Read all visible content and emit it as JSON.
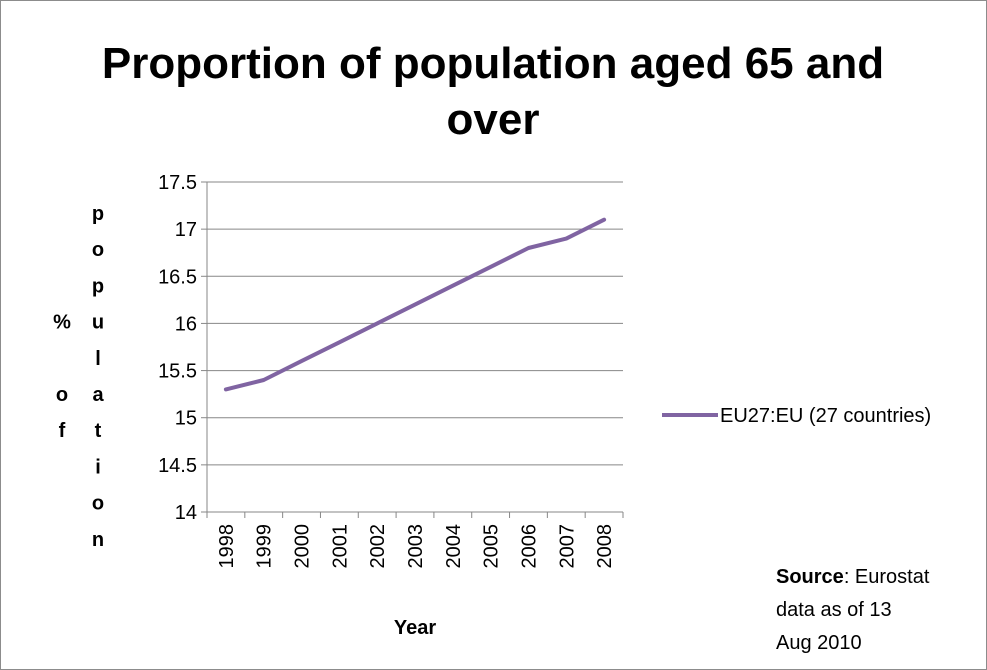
{
  "chart_data": {
    "type": "line",
    "title_lines": [
      "Proportion of population aged 65 and",
      "over"
    ],
    "xlabel": "Year",
    "ylabel_left": "% of",
    "ylabel_right": "population",
    "categories": [
      "1998",
      "1999",
      "2000",
      "2001",
      "2002",
      "2003",
      "2004",
      "2005",
      "2006",
      "2007",
      "2008"
    ],
    "y_ticks": [
      "14",
      "14.5",
      "15",
      "15.5",
      "16",
      "16.5",
      "17",
      "17.5"
    ],
    "ylim": [
      14,
      17.5
    ],
    "grid": true,
    "legend_position": "right",
    "series": [
      {
        "name": "EU27:EU (27 countries)",
        "color": "#8064a2",
        "values": [
          15.3,
          15.4,
          15.6,
          15.8,
          16.0,
          16.2,
          16.4,
          16.6,
          16.8,
          16.9,
          17.1
        ]
      }
    ]
  },
  "source_note": {
    "label": "Source",
    "lines": [
      ": Eurostat",
      "data as of 13",
      "Aug 2010"
    ]
  }
}
